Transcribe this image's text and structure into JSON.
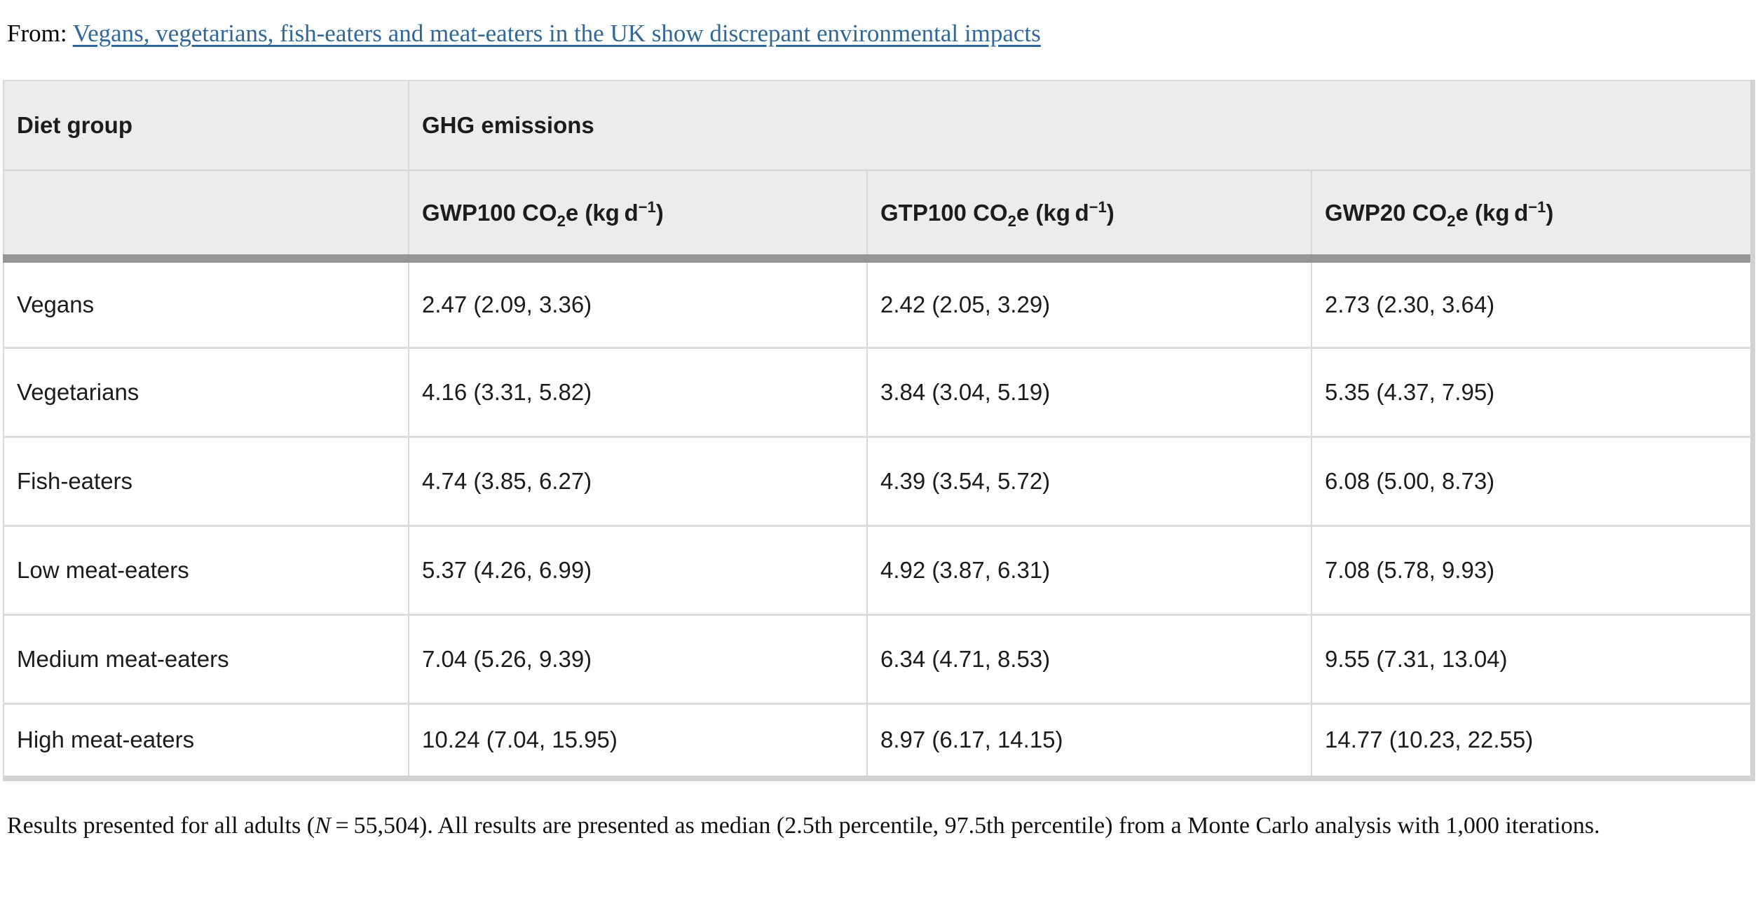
{
  "colors": {
    "link_blue": "#31689a",
    "header_background": "#ececec",
    "header_divider_bar": "#969696",
    "cell_border": "#d9d9d9",
    "scroll_track": "#d2d2d2"
  },
  "source_line": {
    "label": "From:",
    "link_text": "Vegans, vegetarians, fish-eaters and meat-eaters in the UK show discrepant environmental impacts"
  },
  "table": {
    "corner_header": "Diet group",
    "group_header": "GHG emissions",
    "metric_headers": [
      {
        "prefix": "GWP100 CO",
        "sub": "2",
        "mid": "e (kg d",
        "sup": "−1",
        "suffix": ")"
      },
      {
        "prefix": "GTP100 CO",
        "sub": "2",
        "mid": "e (kg d",
        "sup": "−1",
        "suffix": ")"
      },
      {
        "prefix": "GWP20 CO",
        "sub": "2",
        "mid": "e (kg d",
        "sup": "−1",
        "suffix": ")"
      }
    ],
    "rows": [
      {
        "diet_group": "Vegans",
        "gwp100": "2.47 (2.09, 3.36)",
        "gtp100": "2.42 (2.05, 3.29)",
        "gwp20": "2.73 (2.30, 3.64)"
      },
      {
        "diet_group": "Vegetarians",
        "gwp100": "4.16 (3.31, 5.82)",
        "gtp100": "3.84 (3.04, 5.19)",
        "gwp20": "5.35 (4.37, 7.95)"
      },
      {
        "diet_group": "Fish-eaters",
        "gwp100": "4.74 (3.85, 6.27)",
        "gtp100": "4.39 (3.54, 5.72)",
        "gwp20": "6.08 (5.00, 8.73)"
      },
      {
        "diet_group": "Low meat-eaters",
        "gwp100": "5.37 (4.26, 6.99)",
        "gtp100": "4.92 (3.87, 6.31)",
        "gwp20": "7.08 (5.78, 9.93)"
      },
      {
        "diet_group": "Medium meat-eaters",
        "gwp100": "7.04 (5.26, 9.39)",
        "gtp100": "6.34 (4.71, 8.53)",
        "gwp20": "9.55 (7.31, 13.04)"
      },
      {
        "diet_group": "High meat-eaters",
        "gwp100": "10.24 (7.04, 15.95)",
        "gtp100": "8.97 (6.17, 14.15)",
        "gwp20": "14.77 (10.23, 22.55)"
      }
    ]
  },
  "footnote": {
    "part1": "Results presented for all adults (",
    "italic_symbol": "N",
    "part2": " = 55,504). All results are presented as median (2.5th percentile, 97.5th percentile) from a Monte Carlo analysis with 1,000 iterations."
  }
}
